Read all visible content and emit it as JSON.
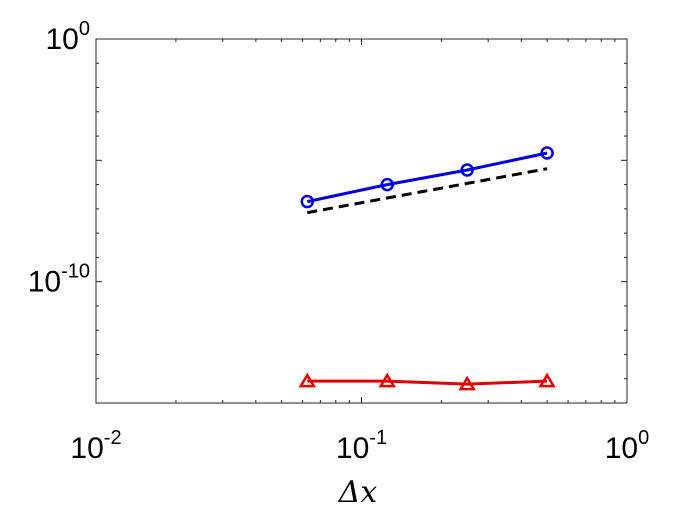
{
  "chart_data": {
    "type": "line",
    "xscale": "log",
    "yscale": "log",
    "xlim": [
      0.01,
      1
    ],
    "ylim": [
      1e-15,
      1
    ],
    "xlabel": "Δx",
    "ylabel": "",
    "title": "",
    "grid": false,
    "x_ticks": [
      {
        "value": 0.01,
        "base": "10",
        "exp": "-2"
      },
      {
        "value": 0.1,
        "base": "10",
        "exp": "-1"
      },
      {
        "value": 1,
        "base": "10",
        "exp": "0"
      }
    ],
    "y_ticks": [
      {
        "value": 1,
        "base": "10",
        "exp": "0"
      },
      {
        "value": 1e-10,
        "base": "10",
        "exp": "-10"
      }
    ],
    "x": [
      0.0625,
      0.125,
      0.25,
      0.5
    ],
    "series": [
      {
        "color": "#0000e6",
        "marker": "circle",
        "line": "solid",
        "values": [
          2e-07,
          1e-06,
          4e-06,
          2e-05
        ]
      },
      {
        "color": "#000000",
        "marker": "none",
        "line": "dashed",
        "values": [
          7e-08,
          2.8e-07,
          1.12e-06,
          4.5e-06
        ]
      },
      {
        "color": "#e60000",
        "marker": "triangle",
        "line": "solid",
        "values": [
          8e-15,
          8e-15,
          6e-15,
          8e-15
        ]
      }
    ]
  }
}
